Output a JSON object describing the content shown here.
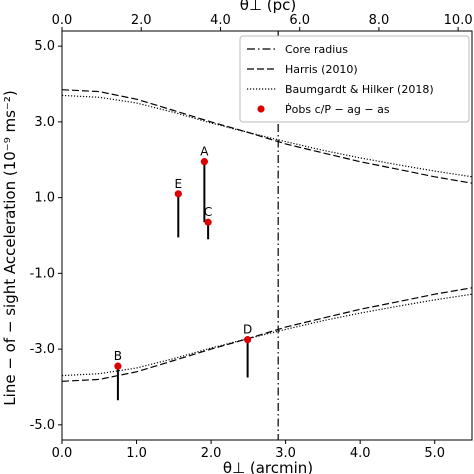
{
  "chart_data": {
    "type": "line",
    "title": "",
    "xlabel": "θ⊥ (arcmin)",
    "ylabel": "Line − of − sight Acceleration (10⁻⁹ ms⁻²)",
    "top_xlabel": "θ⊥ (pc)",
    "xlim": [
      0,
      5.5
    ],
    "ylim": [
      -5.4,
      5.4
    ],
    "top_xlim_pc": [
      0,
      10.35
    ],
    "x_ticks": [
      0.0,
      1.0,
      2.0,
      3.0,
      4.0,
      5.0
    ],
    "x_tick_labels": [
      "0.0",
      "1.0",
      "2.0",
      "3.0",
      "4.0",
      "5.0"
    ],
    "y_ticks": [
      5.0,
      3.0,
      1.0,
      -1.0,
      -3.0,
      -5.0
    ],
    "y_tick_labels": [
      "5.0",
      "3.0",
      "1.0",
      "-1.0",
      "-3.0",
      "-5.0"
    ],
    "top_ticks_pc": [
      0,
      2,
      4,
      6,
      8,
      10
    ],
    "top_tick_labels": [
      "0.0",
      "2.0",
      "4.0",
      "6.0",
      "8.0",
      "10.0"
    ],
    "core_radius": 2.9,
    "legend": {
      "placement": "top-right",
      "entries": [
        {
          "label": "Core radius",
          "style": "dashdot"
        },
        {
          "label": "Harris (2010)",
          "style": "dashed"
        },
        {
          "label": "Baumgardt & Hilker (2018)",
          "style": "dotted"
        },
        {
          "label": "Ṗobs c/P − ag − as",
          "style": "marker"
        }
      ]
    },
    "series": [
      {
        "name": "Harris (2010)",
        "style": "dashed",
        "x": [
          0.0,
          0.5,
          1.0,
          1.5,
          2.0,
          2.5,
          3.0,
          3.5,
          4.0,
          4.5,
          5.0,
          5.5
        ],
        "upper": [
          3.85,
          3.8,
          3.6,
          3.3,
          3.0,
          2.72,
          2.42,
          2.18,
          1.95,
          1.75,
          1.55,
          1.38
        ],
        "lower": [
          -3.85,
          -3.8,
          -3.6,
          -3.3,
          -3.0,
          -2.72,
          -2.42,
          -2.18,
          -1.95,
          -1.75,
          -1.55,
          -1.38
        ]
      },
      {
        "name": "Baumgardt & Hilker (2018)",
        "style": "dotted",
        "x": [
          0.0,
          0.5,
          1.0,
          1.5,
          2.0,
          2.5,
          3.0,
          3.5,
          4.0,
          4.5,
          5.0,
          5.5
        ],
        "upper": [
          3.7,
          3.65,
          3.5,
          3.25,
          2.97,
          2.72,
          2.48,
          2.25,
          2.05,
          1.87,
          1.7,
          1.55
        ],
        "lower": [
          -3.7,
          -3.65,
          -3.5,
          -3.25,
          -2.97,
          -2.72,
          -2.48,
          -2.25,
          -2.05,
          -1.87,
          -1.7,
          -1.55
        ]
      }
    ],
    "points": [
      {
        "label": "A",
        "x": 1.91,
        "y": 1.95,
        "y_low": 0.35
      },
      {
        "label": "B",
        "x": 0.75,
        "y": -3.45,
        "y_low": -4.35
      },
      {
        "label": "C",
        "x": 1.96,
        "y": 0.35,
        "y_low": -0.1
      },
      {
        "label": "D",
        "x": 2.49,
        "y": -2.75,
        "y_low": -3.75
      },
      {
        "label": "E",
        "x": 1.56,
        "y": 1.1,
        "y_low": -0.05
      }
    ],
    "colors": {
      "point": "#dd0000",
      "errorbar": "#000000",
      "line": "#000000"
    }
  }
}
